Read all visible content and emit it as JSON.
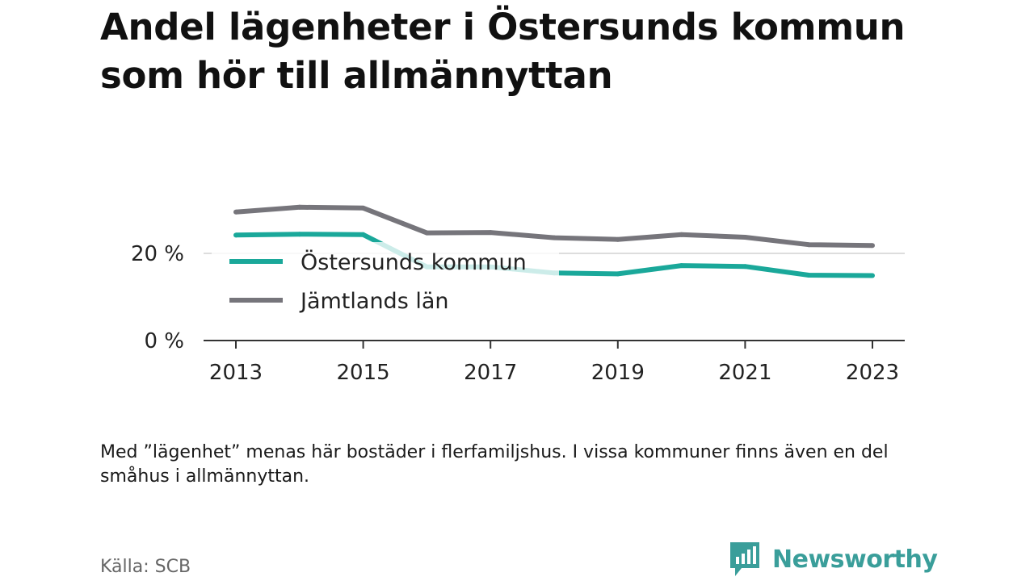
{
  "chart_data": {
    "type": "line",
    "title": "Andel lägenheter i Östersunds kommun som hör till allmännyttan",
    "xlabel": "",
    "ylabel": "",
    "x": [
      2013,
      2014,
      2015,
      2016,
      2017,
      2018,
      2019,
      2020,
      2021,
      2022,
      2023
    ],
    "x_ticks": [
      "2013",
      "2015",
      "2017",
      "2019",
      "2021",
      "2023"
    ],
    "y_ticks": [
      "0 %",
      "20 %"
    ],
    "ylim": [
      0,
      34
    ],
    "grid": "horizontal",
    "series": [
      {
        "name": "Östersunds kommun",
        "color": "#1aa89a",
        "values": [
          24.2,
          24.4,
          24.3,
          16.9,
          16.9,
          15.5,
          15.3,
          17.2,
          17.0,
          15.0,
          14.9
        ]
      },
      {
        "name": "Jämtlands län",
        "color": "#76757b",
        "values": [
          29.5,
          30.6,
          30.4,
          24.7,
          24.8,
          23.6,
          23.2,
          24.3,
          23.7,
          22.0,
          21.8
        ]
      }
    ],
    "legend_position": "inside-left"
  },
  "footnote": "Med ”lägenhet” menas här bostäder i flerfamiljshus. I vissa kommuner finns även en del småhus i allmännyttan.",
  "source": "Källa: SCB",
  "brand": {
    "name": "Newsworthy",
    "color": "#3a9e9a",
    "logo_icon": "newsworthy-logo-icon"
  }
}
